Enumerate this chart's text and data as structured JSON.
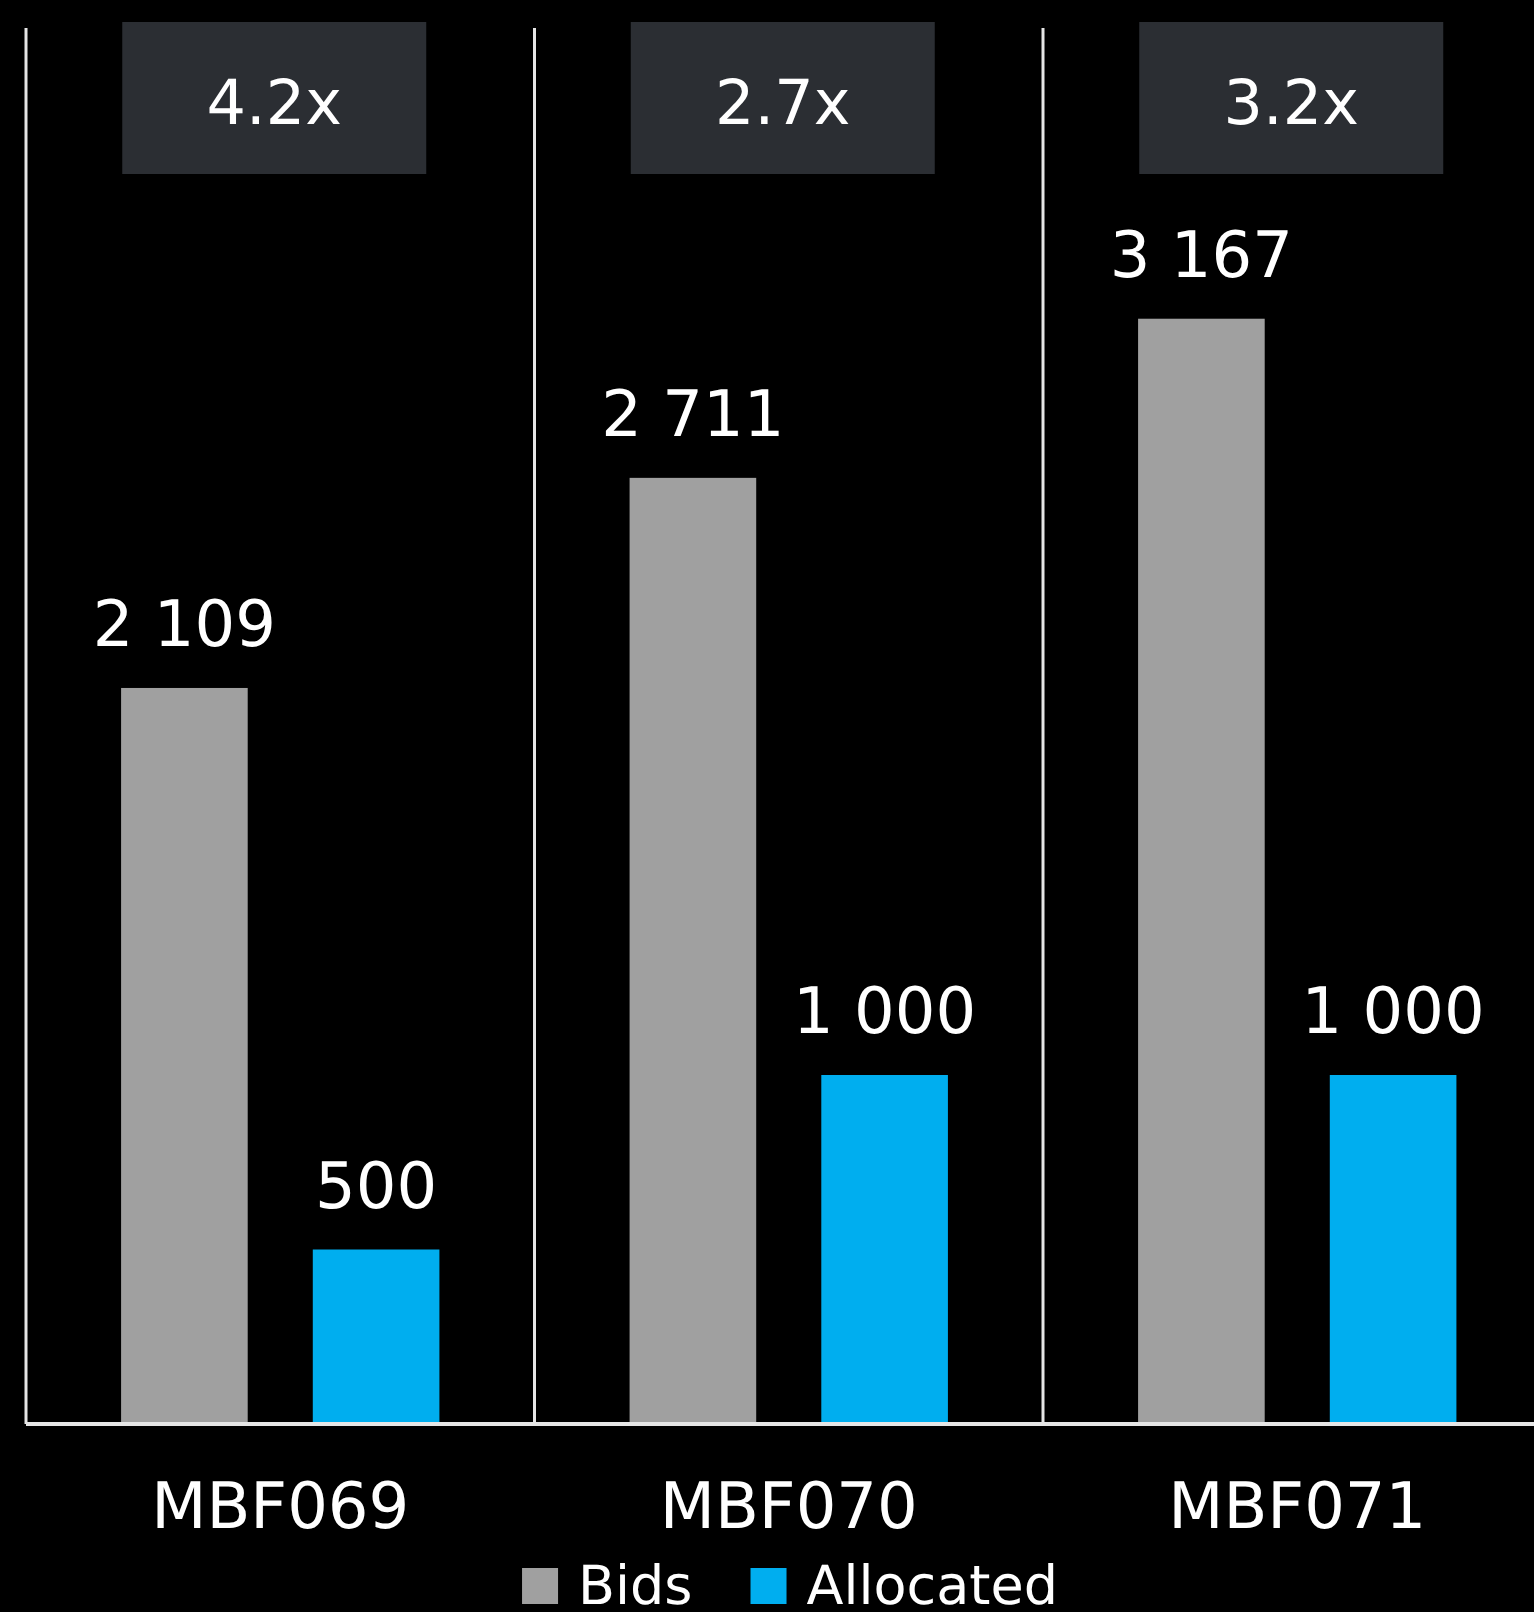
{
  "chart_data": {
    "type": "bar",
    "categories": [
      "MBF069",
      "MBF070",
      "MBF071"
    ],
    "series": [
      {
        "name": "Bids",
        "color": "#a0a0a0",
        "values": [
          2109,
          2711,
          3167
        ],
        "value_labels": [
          "2 109",
          "2 711",
          "3 167"
        ]
      },
      {
        "name": "Allocated",
        "color": "#00aeef",
        "values": [
          500,
          1000,
          1000
        ],
        "value_labels": [
          "500",
          "1 000",
          "1 000"
        ]
      }
    ],
    "ylim": [
      0,
      4000
    ],
    "tick_labels": "x",
    "grid": "x",
    "legend": "bottom",
    "annotations": [
      "4.2x",
      "2.7x",
      "3.2x"
    ]
  }
}
